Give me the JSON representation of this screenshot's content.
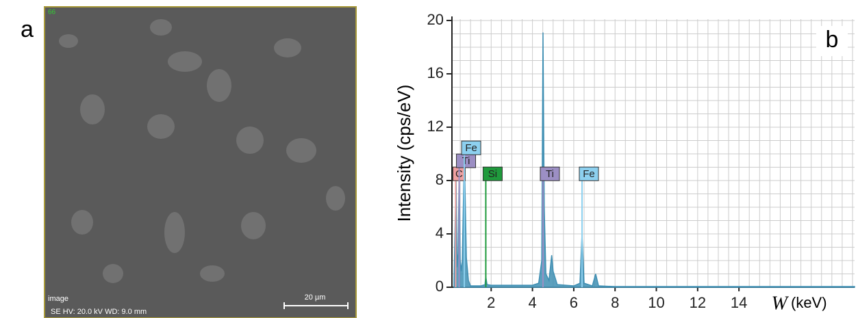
{
  "panel_a": {
    "label": "a",
    "corner_code": "66",
    "info_line_1": "image",
    "info_line_2": "SE  HV: 20.0 kV   WD: 9.0 mm",
    "scale_bar": "20 µm"
  },
  "chart_data": {
    "type": "spectrum",
    "panel_label": "b",
    "y_label": "Intensity (cps/eV)",
    "x_label_symbol": "W",
    "x_label_unit": "(keV)",
    "xlim": [
      0.1,
      19.6
    ],
    "xticks": [
      2,
      4,
      6,
      8,
      10,
      12,
      14
    ],
    "ylim": [
      0,
      20.1
    ],
    "yticks": [
      0,
      4,
      8,
      12,
      16,
      20
    ],
    "grid": {
      "x_step": 0.5,
      "y_step": 1
    },
    "series": [
      {
        "color": "#3f8fb3",
        "x": [
          0.2,
          0.3,
          0.35,
          0.4,
          0.45,
          0.5,
          0.55,
          0.6,
          0.7,
          0.8,
          0.9,
          1.0,
          1.5,
          1.7,
          1.74,
          1.8,
          2.0,
          3.0,
          4.0,
          4.3,
          4.45,
          4.51,
          4.57,
          4.65,
          4.8,
          4.93,
          5.0,
          5.2,
          6.0,
          6.3,
          6.4,
          6.5,
          6.9,
          7.06,
          7.2,
          8.0,
          19.6
        ],
        "values": [
          0.5,
          8.2,
          1.5,
          2.5,
          9.0,
          2.0,
          1.2,
          2.0,
          10.0,
          2.2,
          0.5,
          0.1,
          0.1,
          0.2,
          0.8,
          0.2,
          0.15,
          0.15,
          0.15,
          0.3,
          2.0,
          19.1,
          6.0,
          1.0,
          0.5,
          2.4,
          1.2,
          0.2,
          0.1,
          0.3,
          4.0,
          0.3,
          0.1,
          1.0,
          0.1,
          0.05,
          0.05
        ]
      }
    ],
    "element_markers": [
      {
        "name": "C",
        "energy": 0.28,
        "color": "#f0a0a0"
      },
      {
        "name": "Ti",
        "energy": 0.45,
        "color": "#9c8fc4"
      },
      {
        "name": "Fe",
        "energy": 0.7,
        "color": "#8dd0ef"
      },
      {
        "name": "Si",
        "energy": 1.74,
        "color": "#1f9a3c"
      },
      {
        "name": "Ti",
        "energy": 4.51,
        "color": "#9c8fc4"
      },
      {
        "name": "Fe",
        "energy": 6.4,
        "color": "#8dd0ef"
      }
    ]
  }
}
